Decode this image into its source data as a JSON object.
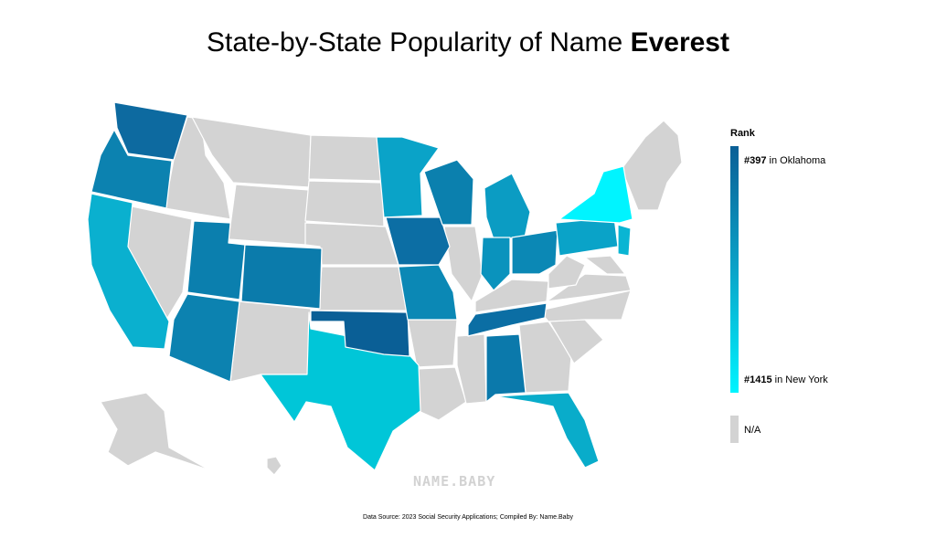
{
  "title": {
    "prefix": "State-by-State Popularity of Name ",
    "name": "Everest"
  },
  "legend": {
    "title": "Rank",
    "max": {
      "rank": "#397",
      "text": " in Oklahoma"
    },
    "min": {
      "rank": "#1415",
      "text": " in New York"
    },
    "na": "N/A",
    "colors": {
      "high": "#0a5f96",
      "mid": "#0aa3c8",
      "low": "#00f4ff",
      "na": "#d3d3d3"
    }
  },
  "watermark": "NAME.BABY",
  "source": "Data Source: 2023 Social Security Applications; Compiled By: Name.Baby",
  "states": {
    "washington": {
      "rank": 468
    },
    "oregon": {
      "rank": 640
    },
    "california": {
      "rank": 900
    },
    "utah": {
      "rank": 620
    },
    "colorado": {
      "rank": 650
    },
    "arizona": {
      "rank": 640
    },
    "texas": {
      "rank": 1060
    },
    "oklahoma": {
      "rank": 397
    },
    "minnesota": {
      "rank": 900
    },
    "iowa": {
      "rank": 520
    },
    "missouri": {
      "rank": 720
    },
    "wisconsin": {
      "rank": 650
    },
    "michigan": {
      "rank": 860
    },
    "illinois": {
      "rank": null
    },
    "indiana": {
      "rank": 760
    },
    "ohio": {
      "rank": 720
    },
    "tennessee": {
      "rank": 560
    },
    "alabama": {
      "rank": 660
    },
    "florida": {
      "rank": 930
    },
    "pennsylvania": {
      "rank": 900
    },
    "new_jersey": {
      "rank": 950
    },
    "new_york": {
      "rank": 1415
    }
  }
}
